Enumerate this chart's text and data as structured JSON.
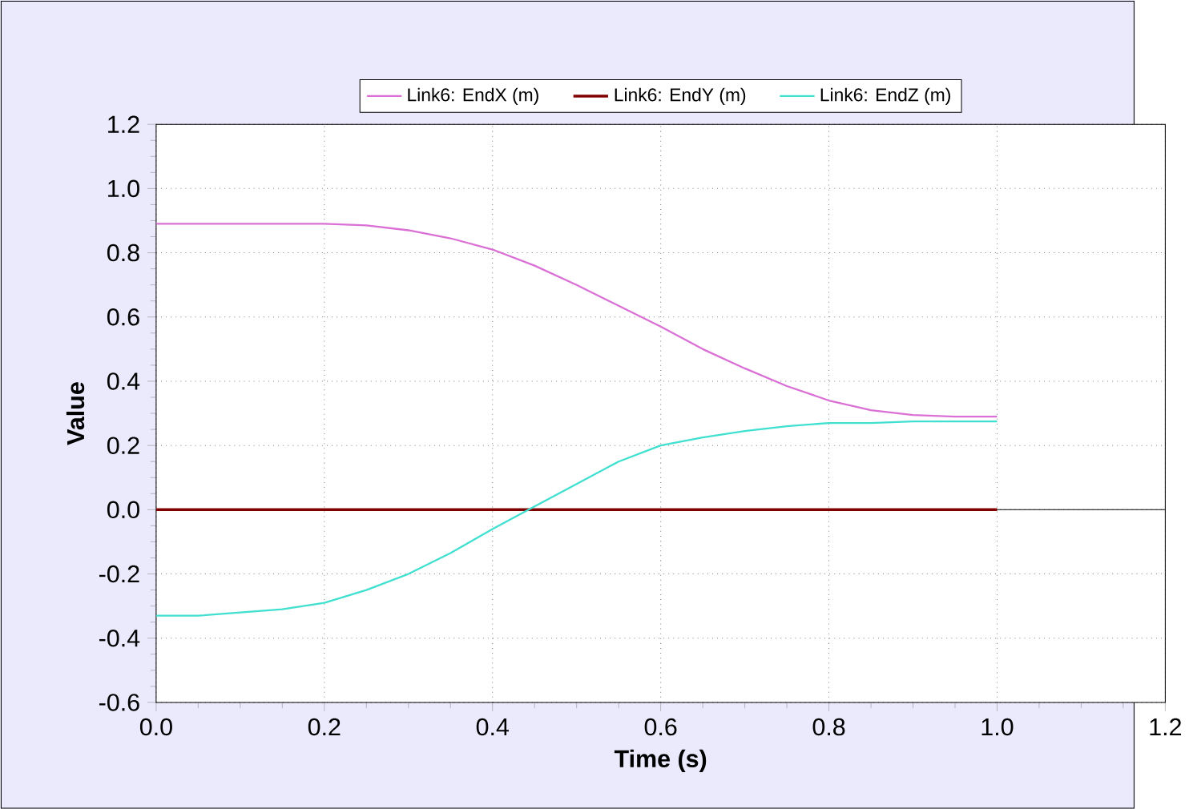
{
  "chart_data": {
    "type": "line",
    "xlabel": "Time (s)",
    "ylabel": "Value",
    "x": [
      0,
      0.05,
      0.1,
      0.15,
      0.2,
      0.25,
      0.3,
      0.35,
      0.4,
      0.45,
      0.5,
      0.55,
      0.6,
      0.65,
      0.7,
      0.75,
      0.8,
      0.85,
      0.9,
      0.95,
      1.0
    ],
    "series": [
      {
        "name": "Link6: EndX (m)",
        "color": "#da70d6",
        "values": [
          0.89,
          0.89,
          0.89,
          0.89,
          0.89,
          0.885,
          0.87,
          0.845,
          0.81,
          0.76,
          0.7,
          0.635,
          0.57,
          0.5,
          0.44,
          0.385,
          0.34,
          0.31,
          0.295,
          0.29,
          0.29
        ]
      },
      {
        "name": "Link6: EndY (m)",
        "color": "#800000",
        "values": [
          0,
          0,
          0,
          0,
          0,
          0,
          0,
          0,
          0,
          0,
          0,
          0,
          0,
          0,
          0,
          0,
          0,
          0,
          0,
          0,
          0
        ]
      },
      {
        "name": "Link6: EndZ (m)",
        "color": "#40e0d0",
        "values": [
          -0.33,
          -0.33,
          -0.32,
          -0.31,
          -0.29,
          -0.25,
          -0.2,
          -0.135,
          -0.06,
          0.01,
          0.08,
          0.15,
          0.2,
          0.225,
          0.245,
          0.26,
          0.27,
          0.27,
          0.275,
          0.275,
          0.275
        ]
      }
    ],
    "xlim": [
      0,
      1.2
    ],
    "xticks": [
      {
        "value": 0,
        "label": "0.0"
      },
      0.2,
      0.4,
      0.6,
      0.8,
      {
        "value": 1,
        "label": "1.0"
      },
      1.2
    ],
    "ylim": [
      -0.6,
      1.2
    ],
    "yticks": [
      -0.6,
      -0.4,
      -0.2,
      {
        "value": 0,
        "label": "0.0"
      },
      0.2,
      0.4,
      0.6,
      0.8,
      {
        "value": 1,
        "label": "1.0"
      },
      1.2
    ],
    "ref_lines": [
      {
        "axis": "y",
        "value": 0,
        "color": "#000000"
      }
    ],
    "grid": true,
    "legend": "top",
    "line_style": "solid",
    "marker": "none"
  }
}
